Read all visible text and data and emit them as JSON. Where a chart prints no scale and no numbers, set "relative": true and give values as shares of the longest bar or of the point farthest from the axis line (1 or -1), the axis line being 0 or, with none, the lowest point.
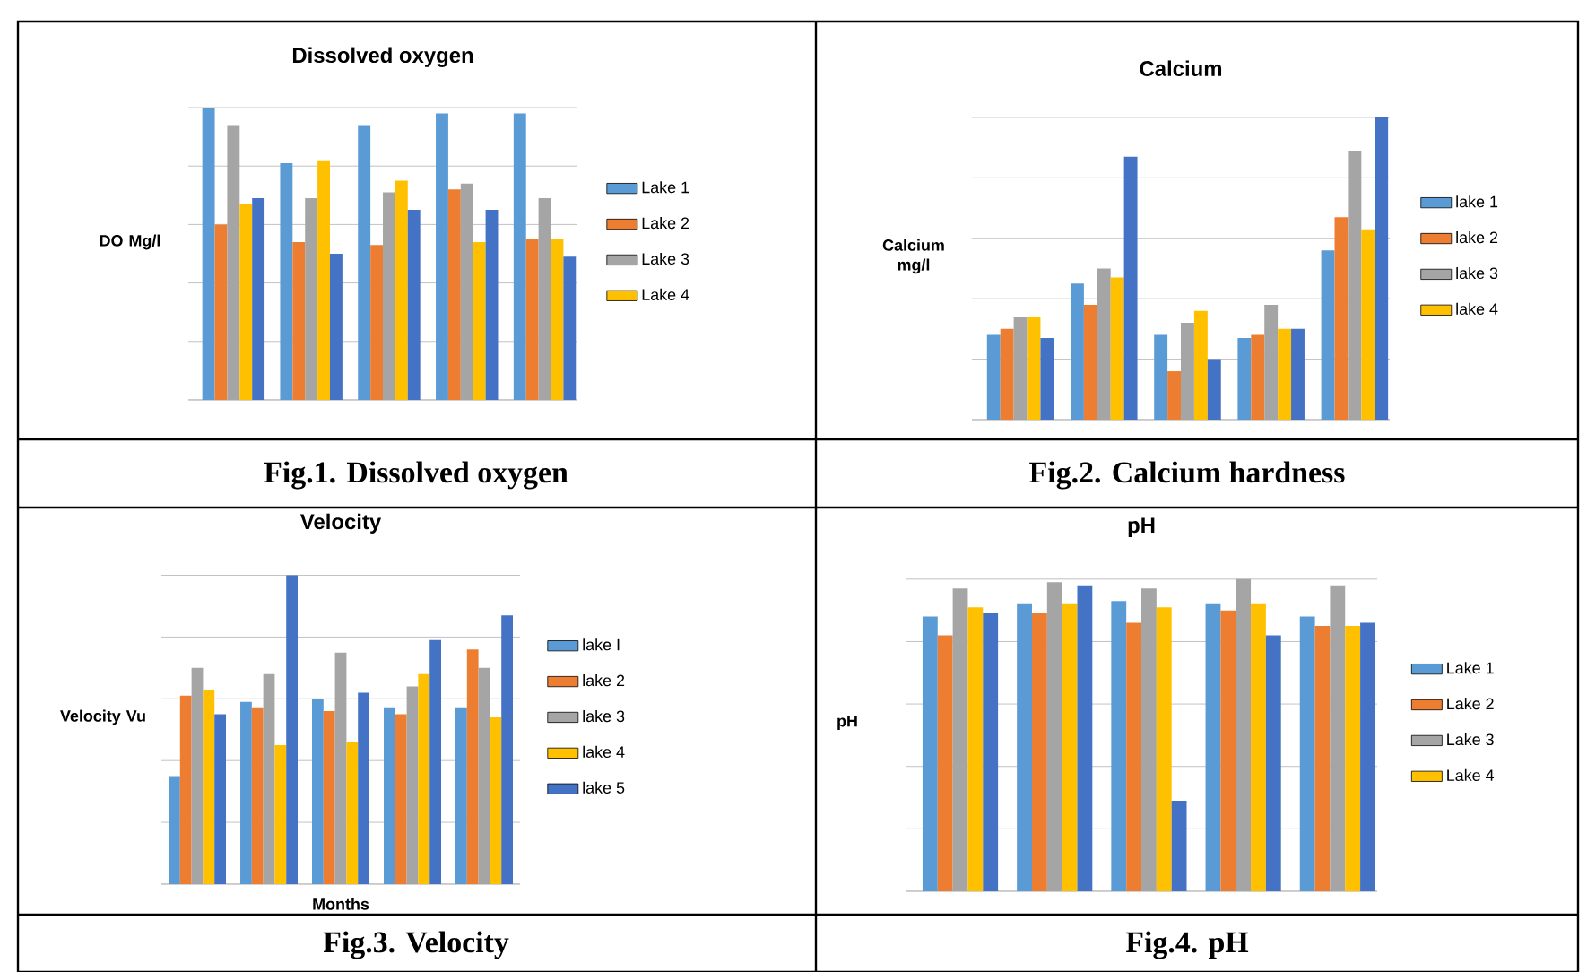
{
  "chart_data": [
    {
      "type": "bar",
      "title": "Dissolved oxygen",
      "ylabel": "DO Mg/l",
      "relative": true,
      "grid": "y",
      "legend": "right",
      "categories": [
        null,
        null,
        null,
        null,
        null
      ],
      "annotations": [
        "Fig.1. Dissolved oxygen"
      ],
      "series": [
        {
          "name": "Lake 1",
          "color": "#5b9bd5",
          "values": [
            1.0,
            0.81,
            0.94,
            0.98,
            0.98
          ]
        },
        {
          "name": "Lake 2",
          "color": "#ed7d31",
          "values": [
            0.6,
            0.54,
            0.53,
            0.72,
            0.55
          ]
        },
        {
          "name": "Lake 3",
          "color": "#a5a5a5",
          "values": [
            0.94,
            0.69,
            0.71,
            0.74,
            0.69
          ]
        },
        {
          "name": "Lake 4",
          "color": "#ffc000",
          "values": [
            0.67,
            0.82,
            0.75,
            0.54,
            0.55
          ]
        },
        {
          "color": "#4472c4",
          "values": [
            0.69,
            0.5,
            0.65,
            0.65,
            0.49
          ]
        }
      ]
    },
    {
      "type": "bar",
      "title": "Calcium",
      "ylabel": "Calcium mg/l",
      "relative": true,
      "grid": "y",
      "legend": "right",
      "categories": [
        null,
        null,
        null,
        null,
        null
      ],
      "annotations": [
        "Fig.2. Calcium hardness"
      ],
      "series": [
        {
          "name": "lake 1",
          "color": "#5b9bd5",
          "values": [
            0.28,
            0.45,
            0.28,
            0.27,
            0.56
          ]
        },
        {
          "name": "lake 2",
          "color": "#ed7d31",
          "values": [
            0.3,
            0.38,
            0.16,
            0.28,
            0.67
          ]
        },
        {
          "name": "lake 3",
          "color": "#a5a5a5",
          "values": [
            0.34,
            0.5,
            0.32,
            0.38,
            0.89
          ]
        },
        {
          "name": "lake 4",
          "color": "#ffc000",
          "values": [
            0.34,
            0.47,
            0.36,
            0.3,
            0.63
          ]
        },
        {
          "color": "#4472c4",
          "values": [
            0.27,
            0.87,
            0.2,
            0.3,
            1.0
          ]
        }
      ]
    },
    {
      "type": "bar",
      "title": "Velocity",
      "ylabel": "Velocity Vu",
      "xlabel": "Months",
      "relative": true,
      "grid": "y",
      "legend": "right",
      "categories": [
        null,
        null,
        null,
        null,
        null
      ],
      "annotations": [
        "Fig.3. Velocity"
      ],
      "series": [
        {
          "name": "lake I",
          "color": "#5b9bd5",
          "values": [
            0.35,
            0.59,
            0.6,
            0.57,
            0.57
          ]
        },
        {
          "name": "lake 2",
          "color": "#ed7d31",
          "values": [
            0.61,
            0.57,
            0.56,
            0.55,
            0.76
          ]
        },
        {
          "name": "lake 3",
          "color": "#a5a5a5",
          "values": [
            0.7,
            0.68,
            0.75,
            0.64,
            0.7
          ]
        },
        {
          "name": "lake 4",
          "color": "#ffc000",
          "values": [
            0.63,
            0.45,
            0.46,
            0.68,
            0.54
          ]
        },
        {
          "name": "lake 5",
          "color": "#4472c4",
          "values": [
            0.55,
            1.0,
            0.62,
            0.79,
            0.87
          ]
        }
      ]
    },
    {
      "type": "bar",
      "title": "pH",
      "ylabel": "pH",
      "relative": true,
      "grid": "y",
      "legend": "right",
      "categories": [
        null,
        null,
        null,
        null,
        null
      ],
      "annotations": [
        "Fig.4. pH"
      ],
      "series": [
        {
          "name": "Lake 1",
          "color": "#5b9bd5",
          "values": [
            0.88,
            0.92,
            0.93,
            0.92,
            0.88
          ]
        },
        {
          "name": "Lake 2",
          "color": "#ed7d31",
          "values": [
            0.82,
            0.89,
            0.86,
            0.9,
            0.85
          ]
        },
        {
          "name": "Lake 3",
          "color": "#a5a5a5",
          "values": [
            0.97,
            0.99,
            0.97,
            1.0,
            0.98
          ]
        },
        {
          "name": "Lake 4",
          "color": "#ffc000",
          "values": [
            0.91,
            0.92,
            0.91,
            0.92,
            0.85
          ]
        },
        {
          "color": "#4472c4",
          "values": [
            0.89,
            0.98,
            0.29,
            0.82,
            0.86
          ]
        }
      ]
    }
  ]
}
